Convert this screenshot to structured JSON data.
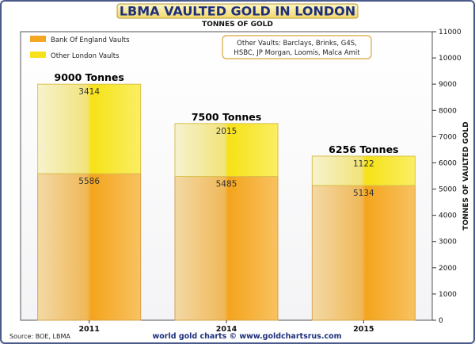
{
  "chart_data": {
    "type": "bar",
    "stacked": true,
    "title": "LBMA VAULTED GOLD IN LONDON",
    "subtitle": "TONNES OF GOLD",
    "ylabel": "TONNES OF VAULTED GOLD",
    "ylim": [
      0,
      11000
    ],
    "yticks": [
      0,
      1000,
      2000,
      3000,
      4000,
      5000,
      6000,
      7000,
      8000,
      9000,
      10000,
      11000
    ],
    "ytick_labels": [
      "0",
      "1000",
      "2000",
      "3000",
      "4000",
      "5000",
      "6000",
      "7000",
      "8000",
      "9000",
      "10000",
      "11000"
    ],
    "grid": false,
    "legend_position": "top-left",
    "categories": [
      "2011",
      "2014",
      "2015"
    ],
    "series": [
      {
        "name": "Bank Of England Vaults",
        "values": [
          5586,
          5485,
          5134
        ],
        "labels": [
          "5586",
          "5485",
          "5134"
        ],
        "color": "#f5a623"
      },
      {
        "name": "Other London Vaults",
        "values": [
          3414,
          2015,
          1122
        ],
        "labels": [
          "3414",
          "2015",
          "1122"
        ],
        "color": "#f6e21a"
      }
    ],
    "totals": [
      9000,
      7500,
      6256
    ],
    "total_labels": [
      "9000 Tonnes",
      "7500 Tonnes",
      "6256 Tonnes"
    ],
    "annotation": "Other Vaults: Barclays, Brinks, G4S, HSBC, JP Morgan, Loomis, Malca Amit",
    "annotation_lines": [
      "Other Vaults: Barclays, Brinks, G4S,",
      "HSBC, JP Morgan, Loomis, Malca Amit"
    ],
    "source": "Source: BOE, LBMA",
    "footer": "world gold charts © www.goldchartsrus.com"
  }
}
